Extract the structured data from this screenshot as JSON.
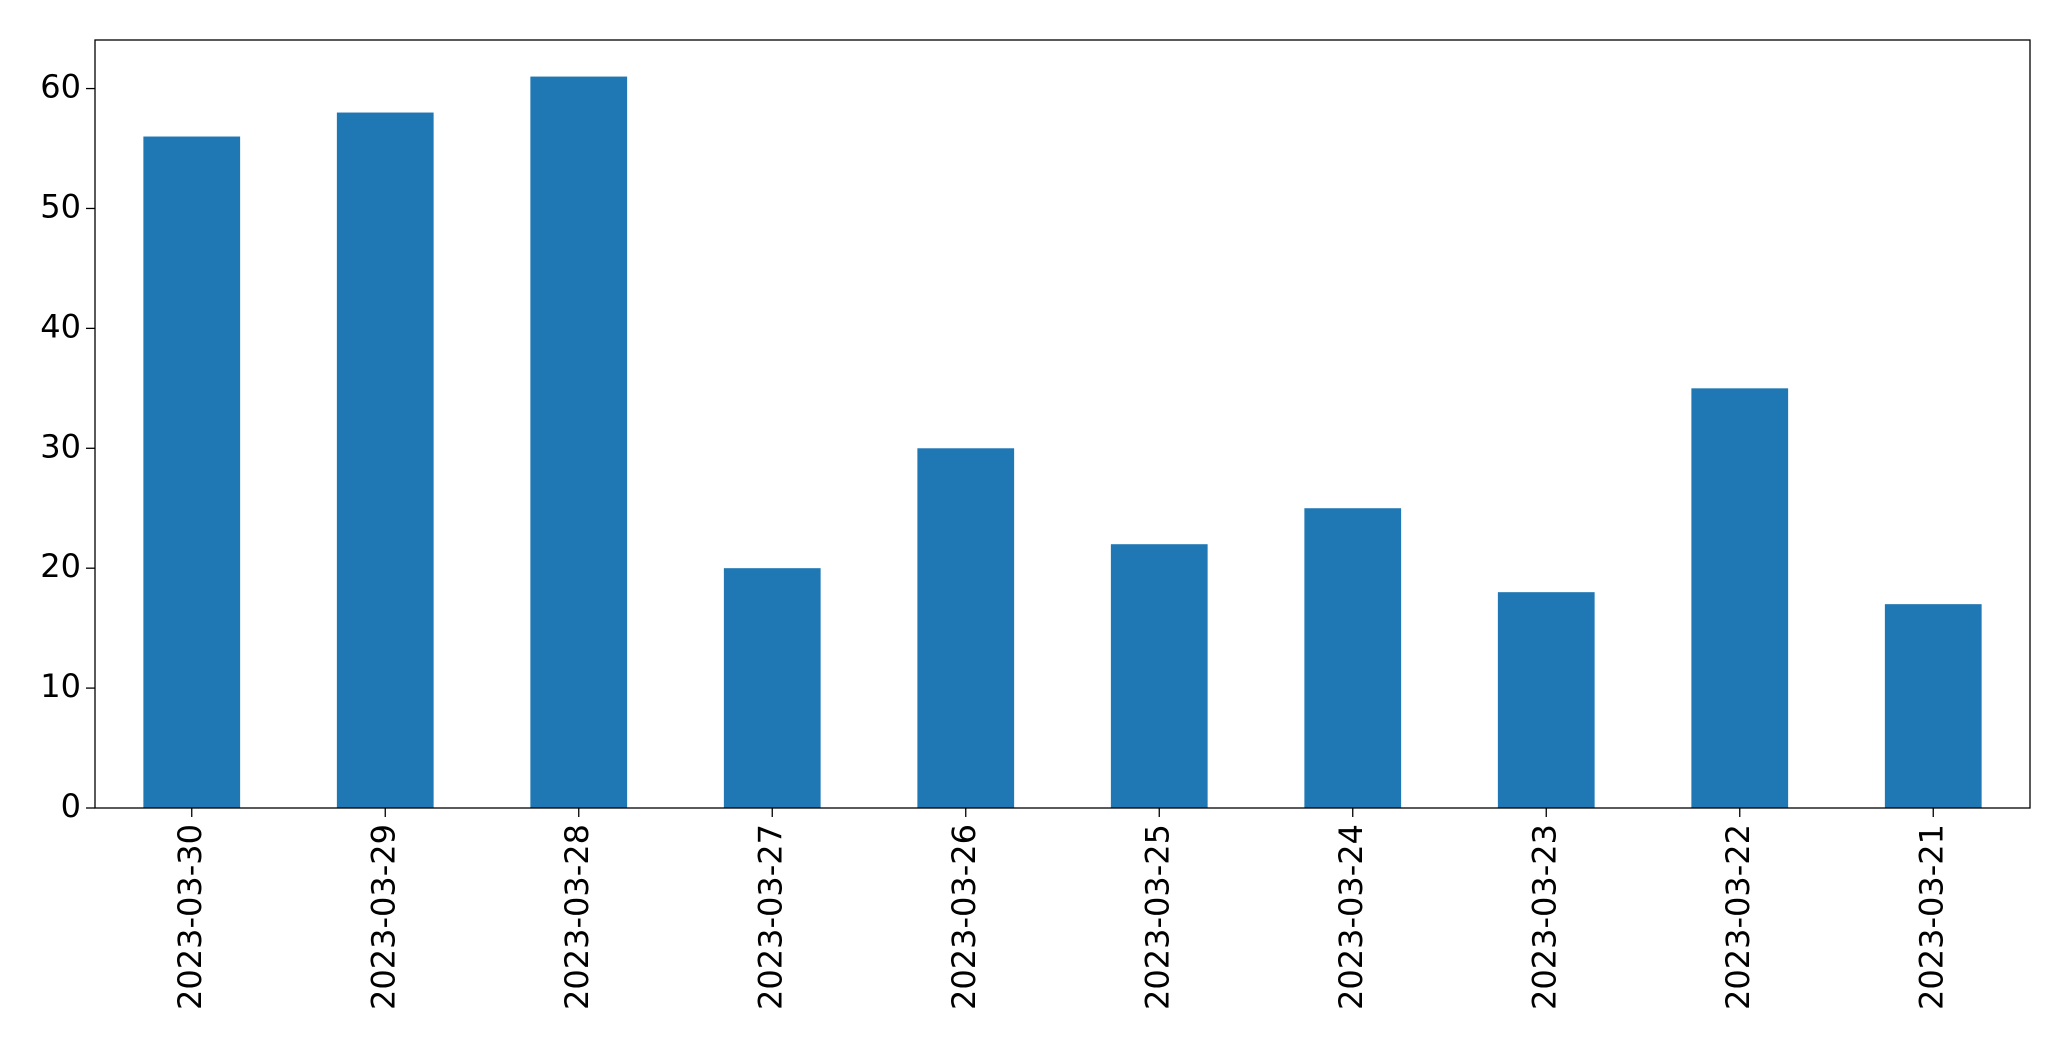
{
  "chart_data": {
    "type": "bar",
    "categories": [
      "2023-03-30",
      "2023-03-29",
      "2023-03-28",
      "2023-03-27",
      "2023-03-26",
      "2023-03-25",
      "2023-03-24",
      "2023-03-23",
      "2023-03-22",
      "2023-03-21"
    ],
    "values": [
      56,
      58,
      61,
      20,
      30,
      22,
      25,
      18,
      35,
      17
    ],
    "color": "#1f77b4",
    "ylim": [
      0,
      64.05
    ],
    "yticks": [
      0,
      10,
      20,
      30,
      40,
      50,
      60
    ],
    "grid": false
  }
}
